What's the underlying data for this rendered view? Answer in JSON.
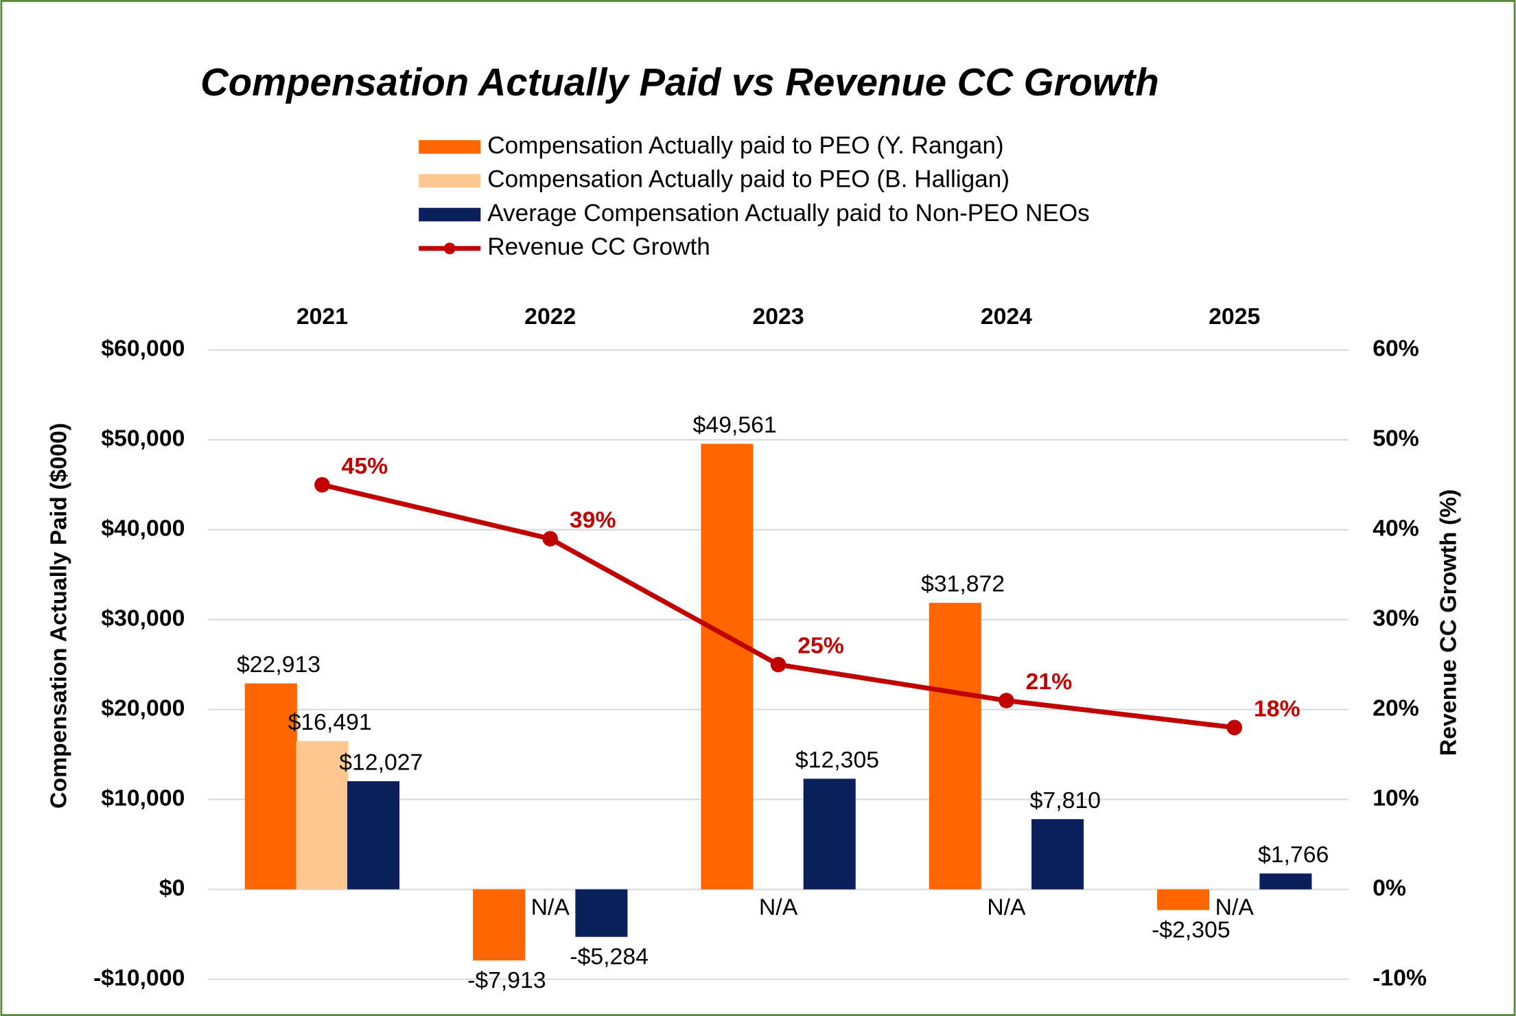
{
  "chart_data": {
    "type": "bar",
    "title": "Compensation Actually Paid vs Revenue CC Growth",
    "categories": [
      "2021",
      "2022",
      "2023",
      "2024",
      "2025"
    ],
    "y_label": "Compensation Actually Paid ($000)",
    "y2_label": "Revenue CC Growth (%)",
    "ylim": [
      -10000,
      60000
    ],
    "yticks": [
      {
        "value": -10000,
        "label": "-$10,000"
      },
      {
        "value": 0,
        "label": "$0"
      },
      {
        "value": 10000,
        "label": "$10,000"
      },
      {
        "value": 20000,
        "label": "$20,000"
      },
      {
        "value": 30000,
        "label": "$30,000"
      },
      {
        "value": 40000,
        "label": "$40,000"
      },
      {
        "value": 50000,
        "label": "$50,000"
      },
      {
        "value": 60000,
        "label": "$60,000"
      }
    ],
    "y2lim": [
      -10,
      60
    ],
    "y2ticks": [
      {
        "value": -10,
        "label": "-10%"
      },
      {
        "value": 0,
        "label": "0%"
      },
      {
        "value": 10,
        "label": "10%"
      },
      {
        "value": 20,
        "label": "20%"
      },
      {
        "value": 30,
        "label": "30%"
      },
      {
        "value": 40,
        "label": "40%"
      },
      {
        "value": 50,
        "label": "50%"
      },
      {
        "value": 60,
        "label": "60%"
      }
    ],
    "grid": true,
    "series": [
      {
        "name": "Compensation Actually paid to PEO (Y. Rangan)",
        "type": "bar",
        "color": "#ff6600",
        "values": [
          22913,
          -7913,
          49561,
          31872,
          -2305
        ],
        "value_labels": [
          "$22,913",
          "-$7,913",
          "$49,561",
          "$31,872",
          "-$2,305"
        ]
      },
      {
        "name": "Compensation Actually paid to PEO (B. Halligan)",
        "type": "bar",
        "color": "#ffc891",
        "values": [
          16491,
          null,
          null,
          null,
          null
        ],
        "value_labels": [
          "$16,491",
          "N/A",
          "N/A",
          "N/A",
          "N/A"
        ]
      },
      {
        "name": "Average Compensation Actually paid to Non-PEO NEOs",
        "type": "bar",
        "color": "#0a1f5c",
        "values": [
          12027,
          -5284,
          12305,
          7810,
          1766
        ],
        "value_labels": [
          "$12,027",
          "-$5,284",
          "$12,305",
          "$7,810",
          "$1,766"
        ]
      },
      {
        "name": "Revenue CC Growth",
        "type": "line",
        "axis": "y2",
        "color": "#c00000",
        "values": [
          45,
          39,
          25,
          21,
          18
        ],
        "value_labels": [
          "45%",
          "39%",
          "25%",
          "21%",
          "18%"
        ]
      }
    ]
  }
}
